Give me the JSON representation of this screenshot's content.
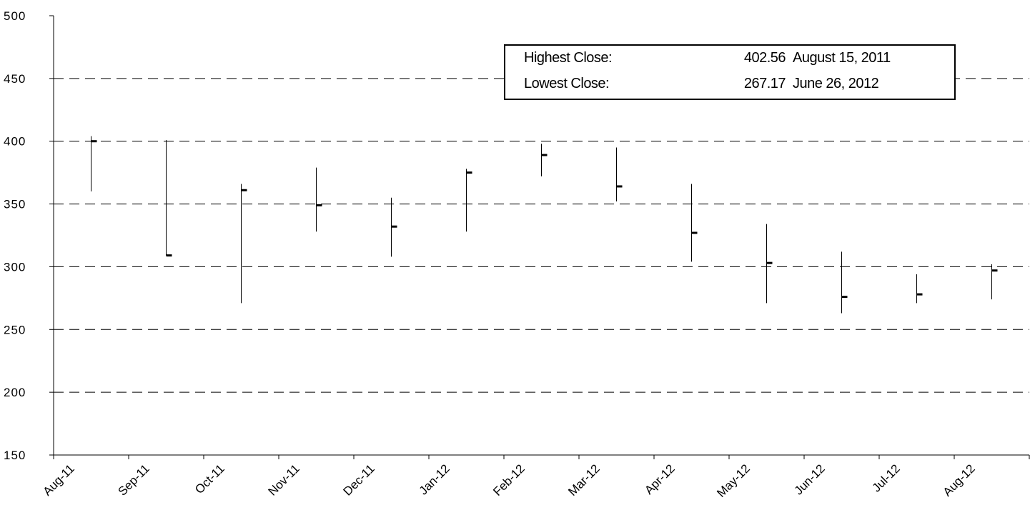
{
  "chart_data": {
    "type": "ohlc",
    "ylim": [
      150,
      500
    ],
    "yticks": [
      "500",
      "450",
      "400",
      "350",
      "300",
      "250",
      "200",
      "150"
    ],
    "grid": "horizontal-dashed",
    "categories": [
      "Aug-11",
      "Sep-11",
      "Oct-11",
      "Nov-11",
      "Dec-11",
      "Jan-12",
      "Feb-12",
      "Mar-12",
      "Apr-12",
      "May-12",
      "Jun-12",
      "Jul-12",
      "Aug-12"
    ],
    "high": [
      404,
      401,
      366,
      379,
      355,
      378,
      398,
      395,
      366,
      334,
      312,
      294,
      302
    ],
    "low": [
      360,
      309,
      271,
      328,
      308,
      328,
      372,
      352,
      304,
      271,
      263,
      271,
      274
    ],
    "close": [
      400,
      309,
      361,
      349,
      332,
      375,
      389,
      364,
      327,
      303,
      276,
      278,
      297
    ]
  },
  "summary": {
    "rows": [
      {
        "label": "Highest Close:",
        "value": "402.56",
        "date": "August 15, 2011"
      },
      {
        "label": "Lowest Close:",
        "value": "267.17",
        "date": "June 26, 2012"
      }
    ]
  }
}
